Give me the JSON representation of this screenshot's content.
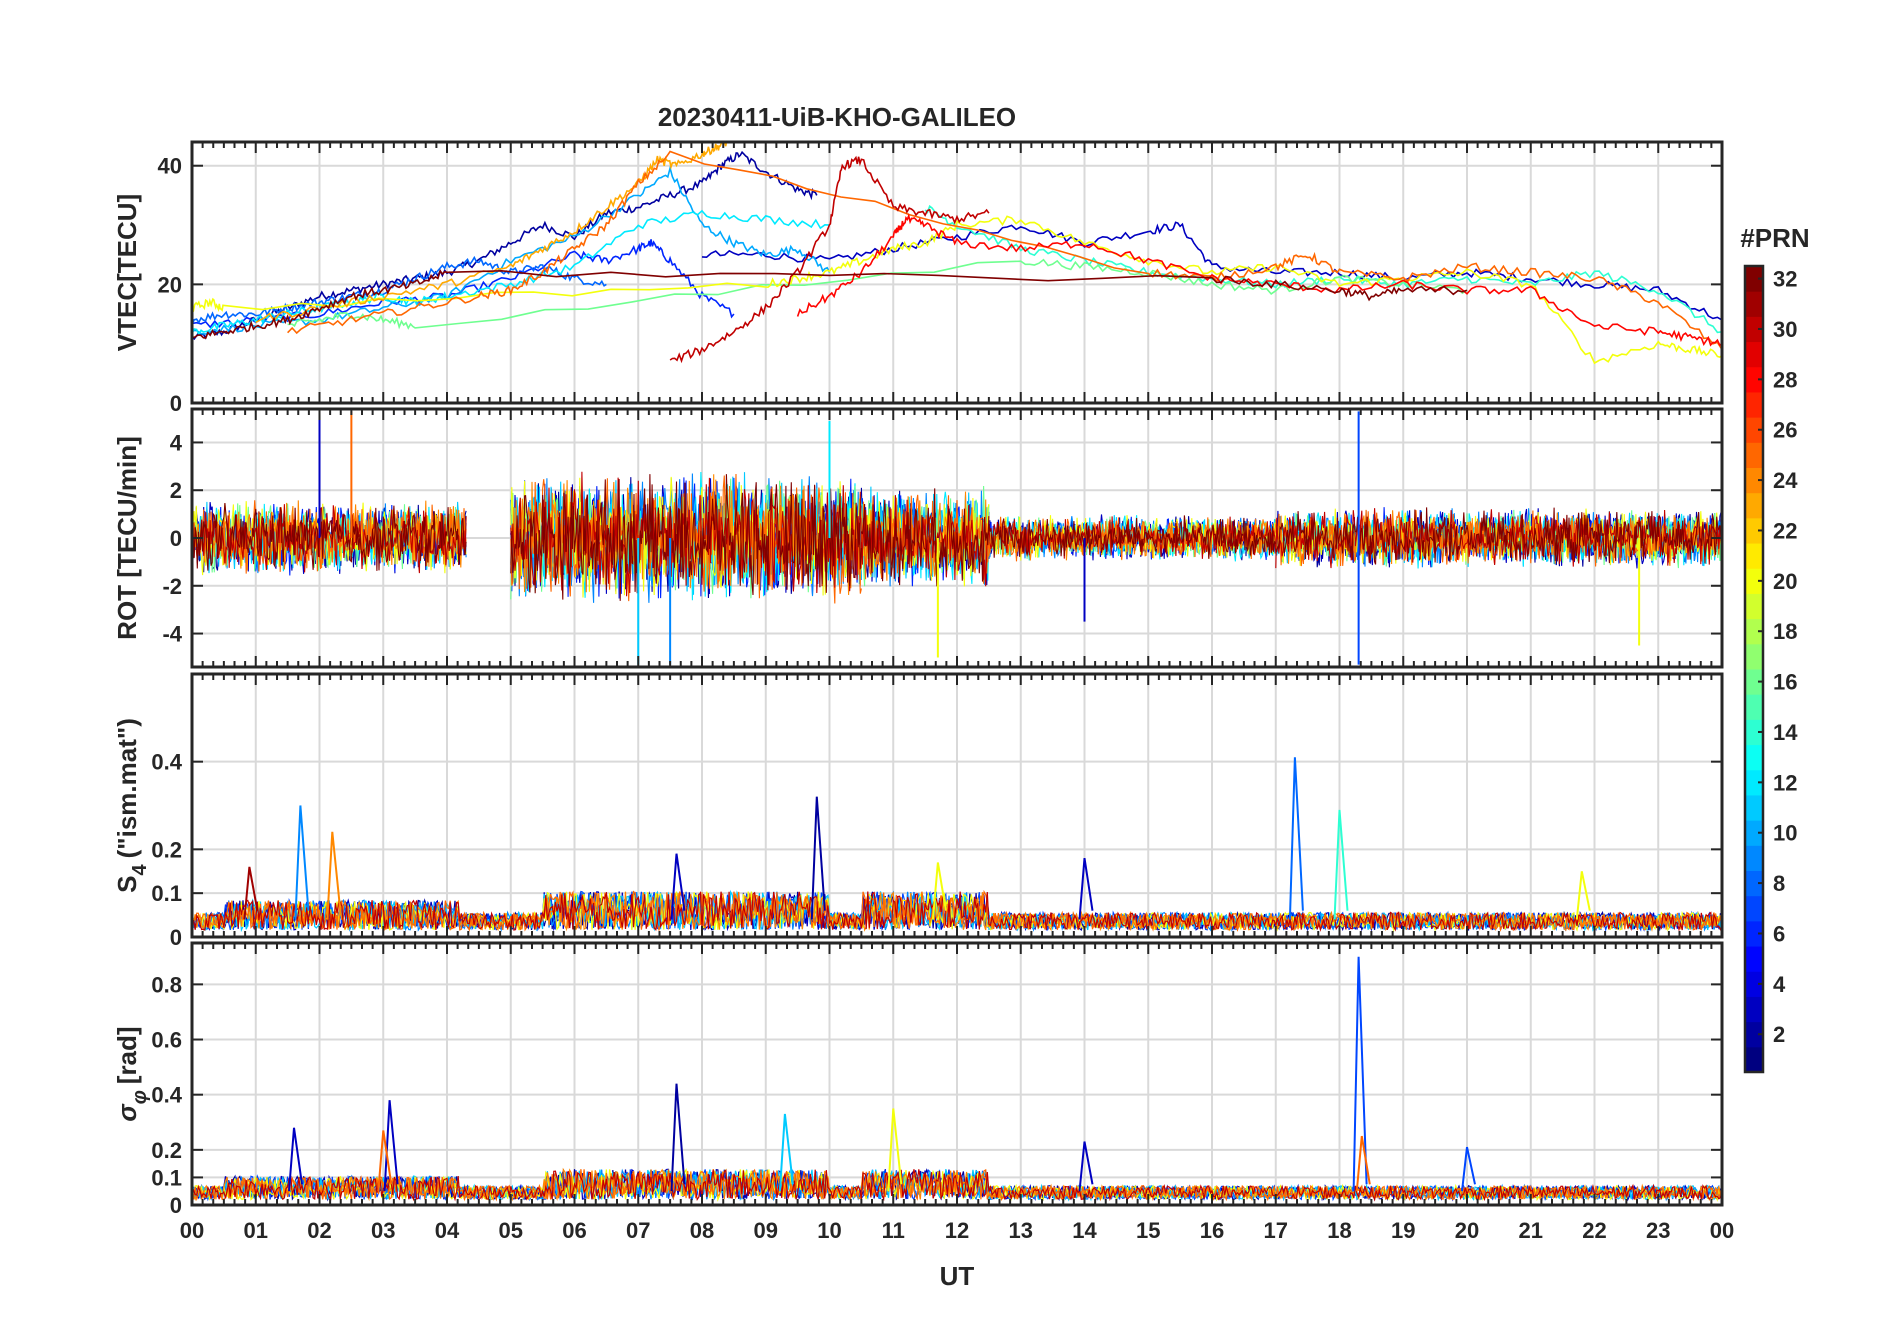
{
  "figure": {
    "title": "20230411-UiB-KHO-GALILEO",
    "xlabel": "UT",
    "background": "#ffffff"
  },
  "chart_data": [
    {
      "type": "line",
      "id": "vtec",
      "ylabel": "VTEC[TECU]",
      "xlim": [
        0,
        24
      ],
      "ylim": [
        0,
        44
      ],
      "yticks": [
        0,
        20,
        40
      ],
      "grid": true,
      "series": [
        {
          "prn": 2,
          "x": [
            0,
            0.5,
            1,
            1.5,
            2,
            2.5,
            3,
            3.5,
            4,
            4.5,
            5,
            5.5,
            6,
            6.5,
            7,
            7.5,
            8,
            8.3,
            8.6,
            9,
            9.5,
            9.8
          ],
          "y": [
            11,
            12,
            14,
            16,
            18,
            19,
            20,
            21,
            22,
            24,
            27,
            30,
            28,
            32,
            33,
            35,
            37,
            40,
            42,
            39,
            36,
            35
          ]
        },
        {
          "prn": 3,
          "x": [
            8,
            9,
            10,
            11,
            12,
            13,
            14,
            15,
            15.5,
            16,
            17,
            18,
            19,
            20,
            21,
            22,
            23,
            24
          ],
          "y": [
            25,
            25,
            24,
            26,
            28,
            30,
            27,
            29,
            30,
            23,
            22,
            22,
            21,
            22,
            21,
            20,
            19,
            14
          ]
        },
        {
          "prn": 6,
          "x": [
            0,
            1,
            2,
            3,
            4,
            5,
            6,
            6.5,
            7,
            7.2,
            7.5,
            8,
            8.5
          ],
          "y": [
            13,
            14,
            15,
            17,
            18,
            21,
            25,
            24,
            26,
            27,
            24,
            18,
            15
          ]
        },
        {
          "prn": 8,
          "x": [
            0,
            0.5,
            1,
            1.5,
            2,
            2.5,
            3,
            3.5,
            4,
            4.5,
            5,
            5.5,
            6,
            6.5
          ],
          "y": [
            14,
            15,
            15,
            16,
            17,
            18,
            19,
            21,
            23,
            24,
            22,
            23,
            21,
            20
          ]
        },
        {
          "prn": 10,
          "x": [
            0,
            1,
            2,
            3,
            4,
            5,
            6,
            7,
            7.5,
            8,
            8.5,
            9,
            9.5,
            10
          ],
          "y": [
            12,
            13,
            14,
            16,
            18,
            24,
            28,
            35,
            39,
            30,
            27,
            25,
            26,
            22
          ]
        },
        {
          "prn": 12,
          "x": [
            0,
            0.5,
            1,
            1.5,
            2,
            2.5,
            3,
            3.5,
            4,
            5,
            6,
            7,
            8,
            9,
            10
          ],
          "y": [
            12,
            13,
            14,
            15,
            16,
            17,
            18,
            17,
            18,
            20,
            23,
            30,
            32,
            31,
            30
          ]
        },
        {
          "prn": 14,
          "x": [
            11.5,
            12,
            13,
            14,
            15,
            16,
            17,
            18,
            19,
            20,
            21,
            22,
            23,
            24
          ],
          "y": [
            33,
            30,
            26,
            24,
            22,
            21,
            20,
            21,
            20,
            21,
            20,
            22,
            19,
            12
          ]
        },
        {
          "prn": 16,
          "x": [
            1.5,
            2,
            2.5,
            3,
            3.5,
            13,
            14,
            15,
            16,
            17,
            18,
            19,
            20
          ],
          "y": [
            13,
            14,
            15,
            14,
            13,
            24,
            23,
            22,
            20,
            19,
            21,
            20,
            19
          ]
        },
        {
          "prn": 20,
          "x": [
            0,
            0.3,
            0.5,
            9,
            9.5,
            10,
            10.5,
            11,
            11.5,
            12,
            13,
            14,
            15,
            16,
            17,
            18,
            19,
            20,
            21,
            22,
            23,
            23.5,
            24
          ],
          "y": [
            16,
            17,
            16,
            20,
            21,
            22,
            24,
            26,
            27,
            30,
            31,
            27,
            24,
            22,
            23,
            20,
            21,
            22,
            20,
            7,
            10,
            9,
            8
          ]
        },
        {
          "prn": 23,
          "x": [
            1,
            2,
            3,
            4,
            5,
            5.5,
            6,
            6.5,
            7,
            7.3,
            7.6,
            8,
            8.2,
            8.4
          ],
          "y": [
            14,
            16,
            18,
            20,
            23,
            26,
            29,
            33,
            37,
            41,
            40,
            42,
            43,
            44
          ]
        },
        {
          "prn": 25,
          "x": [
            1.5,
            2.5,
            3.5,
            4.5,
            5,
            5.5,
            6,
            6.5,
            7,
            7.5,
            15,
            16,
            17,
            17.5,
            18,
            19,
            20,
            21,
            22,
            23,
            24
          ],
          "y": [
            12,
            14,
            16,
            18,
            19,
            22,
            26,
            30,
            37,
            42,
            22,
            21,
            23,
            25,
            22,
            21,
            23,
            22,
            21,
            17,
            9
          ]
        },
        {
          "prn": 28,
          "x": [
            9.5,
            10,
            10.5,
            11,
            11.2,
            11.5,
            12,
            13,
            14,
            15,
            16,
            17,
            18,
            19,
            20,
            21,
            22,
            23,
            23.5,
            24
          ],
          "y": [
            15,
            18,
            22,
            28,
            31,
            30,
            27,
            26,
            27,
            24,
            21,
            20,
            19,
            20,
            19,
            19,
            13,
            12,
            11,
            10
          ]
        },
        {
          "prn": 30,
          "x": [
            7.5,
            8,
            8.5,
            9,
            9.5,
            10,
            10.2,
            10.5,
            11,
            11.5,
            12,
            12.5
          ],
          "y": [
            7,
            9,
            12,
            16,
            22,
            30,
            40,
            41,
            33,
            32,
            31,
            32
          ]
        },
        {
          "prn": 32,
          "x": [
            0,
            0.5,
            1,
            1.5,
            2,
            2.5,
            3,
            3.5,
            4,
            16,
            17,
            18,
            18.5,
            19,
            20
          ],
          "y": [
            11,
            12,
            13,
            14,
            16,
            18,
            19,
            20,
            22,
            21,
            20,
            19,
            18,
            19,
            19
          ]
        }
      ]
    },
    {
      "type": "line",
      "id": "rot",
      "ylabel": "ROT [TECU/min]",
      "xlim": [
        0,
        24
      ],
      "ylim": [
        -5.4,
        5.4
      ],
      "yticks": [
        -4,
        -2,
        0,
        2,
        4
      ],
      "grid": true,
      "bands": [
        {
          "start": 0,
          "end": 4.3,
          "amp": 1.6
        },
        {
          "start": 5,
          "end": 10.5,
          "amp": 2.8
        },
        {
          "start": 10.5,
          "end": 12.5,
          "amp": 2.2
        },
        {
          "start": 12.5,
          "end": 17,
          "amp": 1.0
        },
        {
          "start": 17,
          "end": 24,
          "amp": 1.3
        }
      ],
      "spikes": [
        {
          "x": 2.0,
          "y": 5.3,
          "prn": 3
        },
        {
          "x": 2.5,
          "y": 5.3,
          "prn": 25
        },
        {
          "x": 7.0,
          "y": -5.3,
          "prn": 11
        },
        {
          "x": 7.5,
          "y": -5.3,
          "prn": 9
        },
        {
          "x": 10.0,
          "y": 4.9,
          "prn": 12
        },
        {
          "x": 11.7,
          "y": -5.0,
          "prn": 20
        },
        {
          "x": 14.0,
          "y": -3.5,
          "prn": 3
        },
        {
          "x": 18.3,
          "y": 5.3,
          "prn": 7
        },
        {
          "x": 18.3,
          "y": -5.3,
          "prn": 7
        },
        {
          "x": 22.7,
          "y": -4.5,
          "prn": 20
        }
      ]
    },
    {
      "type": "line",
      "id": "s4",
      "ylabel": "S",
      "ylabel_subscript": "4",
      "ylabel_suffix": "(\"ism.mat\")",
      "xlim": [
        0,
        24
      ],
      "ylim": [
        0,
        0.6
      ],
      "yticks": [
        0,
        0.1,
        0.2,
        0.4
      ],
      "grid": true,
      "baseline": 0.04,
      "spikes": [
        {
          "x": 0.9,
          "y": 0.16,
          "prn": 31
        },
        {
          "x": 1.7,
          "y": 0.3,
          "prn": 9
        },
        {
          "x": 2.2,
          "y": 0.24,
          "prn": 24
        },
        {
          "x": 7.6,
          "y": 0.19,
          "prn": 3
        },
        {
          "x": 9.8,
          "y": 0.32,
          "prn": 2
        },
        {
          "x": 11.7,
          "y": 0.17,
          "prn": 20
        },
        {
          "x": 14.0,
          "y": 0.18,
          "prn": 3
        },
        {
          "x": 17.3,
          "y": 0.41,
          "prn": 8
        },
        {
          "x": 18.0,
          "y": 0.29,
          "prn": 14
        },
        {
          "x": 21.8,
          "y": 0.15,
          "prn": 20
        }
      ]
    },
    {
      "type": "line",
      "id": "sigma_phi",
      "ylabel": "σ",
      "ylabel_subscript": "φ",
      "ylabel_suffix": "[rad]",
      "xlim": [
        0,
        24
      ],
      "ylim": [
        0,
        0.95
      ],
      "yticks": [
        0,
        0.1,
        0.2,
        0.4,
        0.6,
        0.8
      ],
      "grid": true,
      "baseline": 0.05,
      "spikes": [
        {
          "x": 1.6,
          "y": 0.28,
          "prn": 3
        },
        {
          "x": 3.1,
          "y": 0.38,
          "prn": 3
        },
        {
          "x": 3.0,
          "y": 0.27,
          "prn": 25
        },
        {
          "x": 7.6,
          "y": 0.44,
          "prn": 2
        },
        {
          "x": 9.3,
          "y": 0.33,
          "prn": 11
        },
        {
          "x": 11.0,
          "y": 0.35,
          "prn": 20
        },
        {
          "x": 14.0,
          "y": 0.23,
          "prn": 3
        },
        {
          "x": 18.3,
          "y": 0.9,
          "prn": 7
        },
        {
          "x": 18.35,
          "y": 0.25,
          "prn": 25
        },
        {
          "x": 20.0,
          "y": 0.21,
          "prn": 7
        }
      ]
    }
  ],
  "x_axis": {
    "tick_labels": [
      "00",
      "01",
      "02",
      "03",
      "04",
      "05",
      "06",
      "07",
      "08",
      "09",
      "10",
      "11",
      "12",
      "13",
      "14",
      "15",
      "16",
      "17",
      "18",
      "19",
      "20",
      "21",
      "22",
      "23",
      "00"
    ]
  },
  "colorbar": {
    "title": "#PRN",
    "min": 1,
    "max": 32,
    "tick_labels": [
      "2",
      "4",
      "6",
      "8",
      "10",
      "12",
      "14",
      "16",
      "18",
      "20",
      "22",
      "24",
      "26",
      "28",
      "30",
      "32"
    ],
    "colormap": "jet"
  }
}
